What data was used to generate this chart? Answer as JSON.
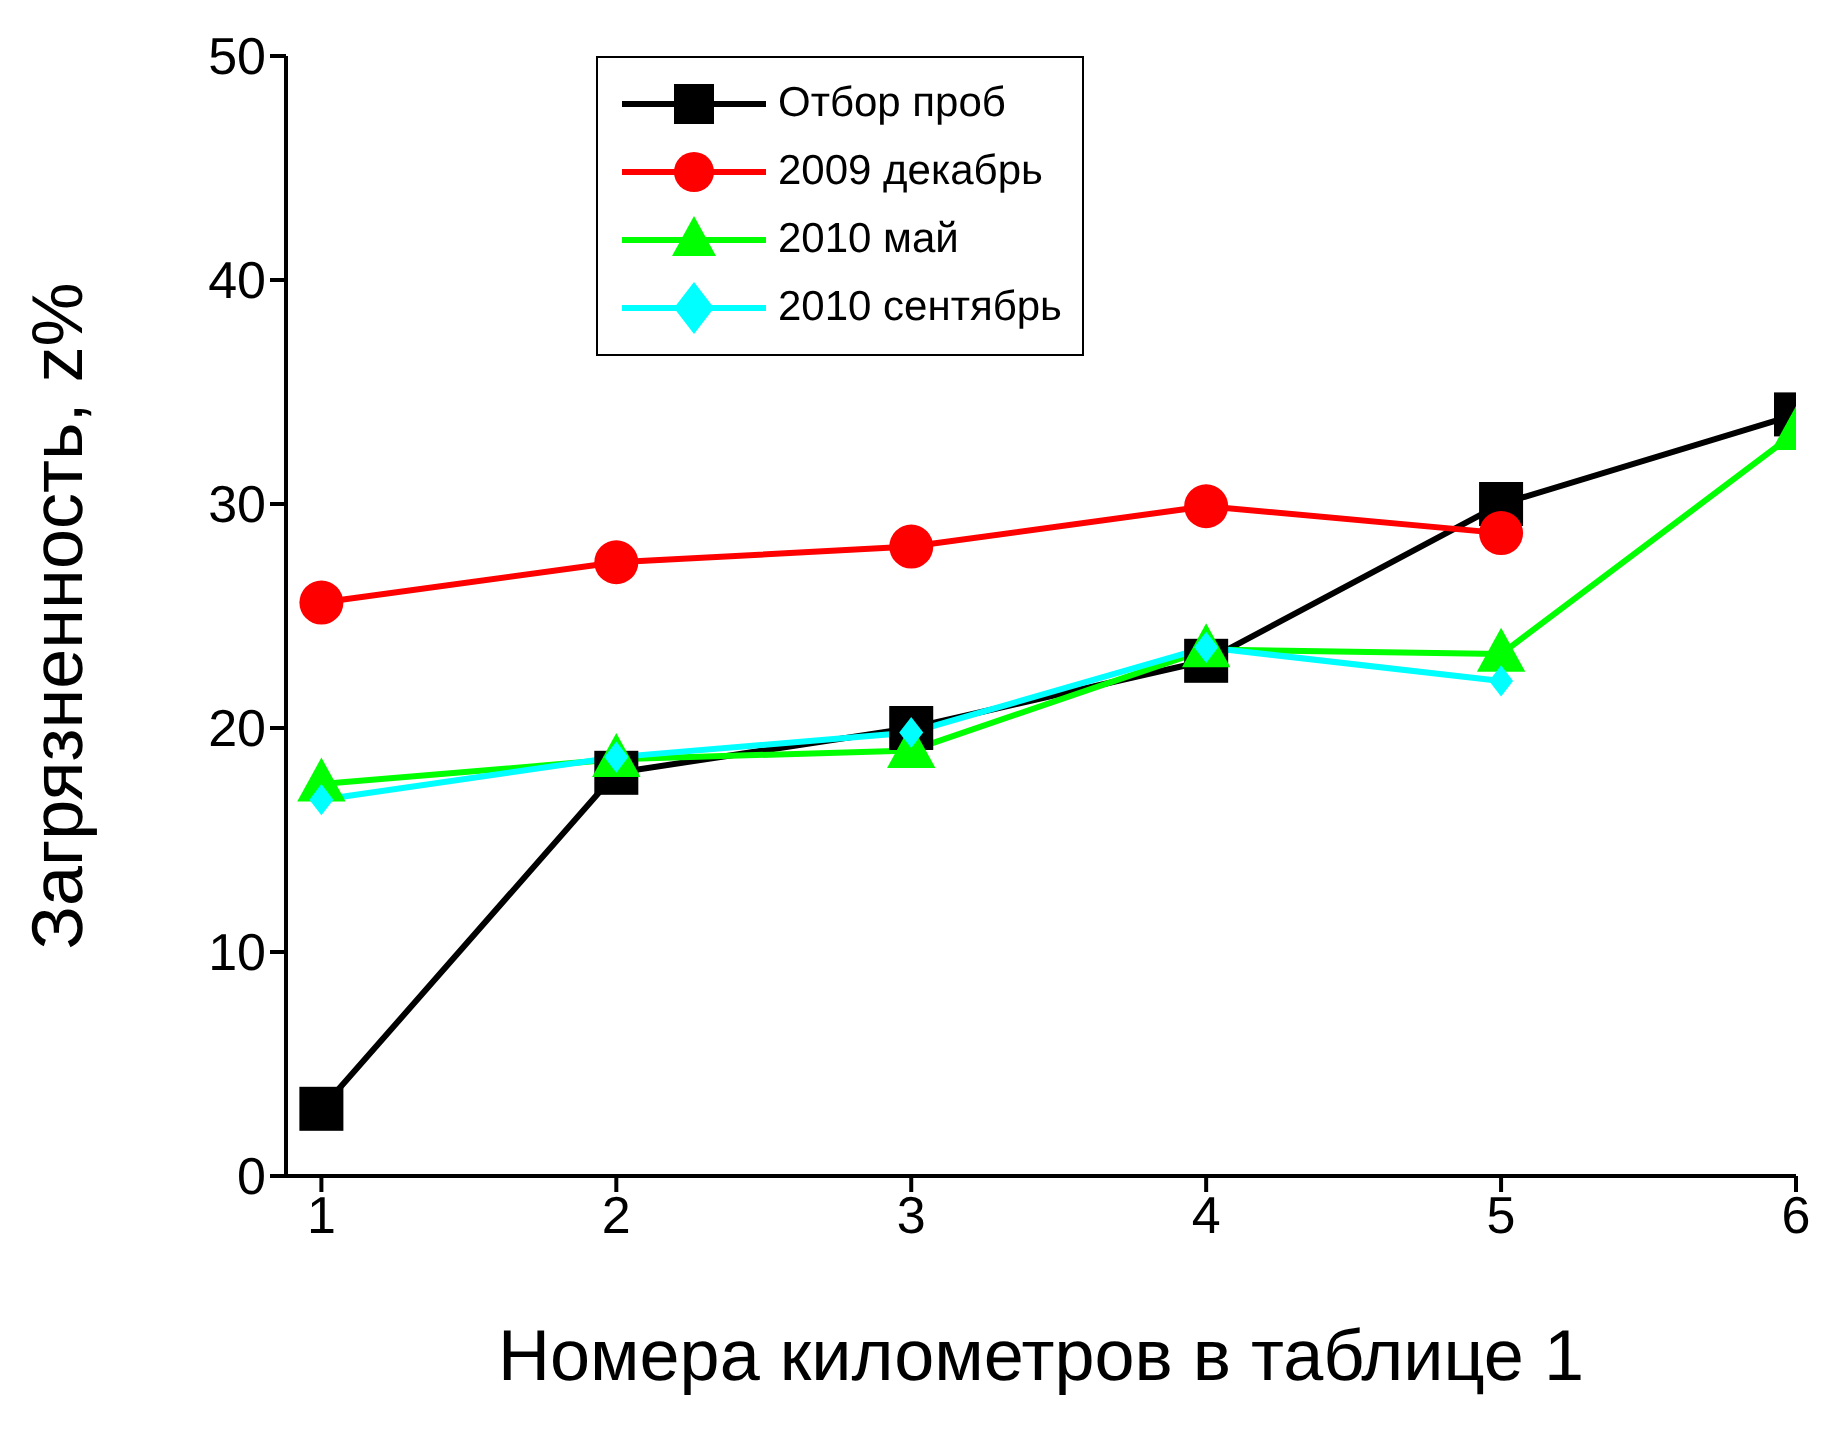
{
  "chart_data": {
    "type": "line",
    "xlabel": "Номера километров в таблице 1",
    "ylabel": "Загрязненность, z%",
    "x": [
      1,
      2,
      3,
      4,
      5,
      6
    ],
    "series": [
      {
        "name": "Отбор проб",
        "color": "#000000",
        "marker": "square",
        "values": [
          3,
          18,
          20,
          23,
          30,
          34
        ]
      },
      {
        "name": "2009 декабрь",
        "color": "#ff0000",
        "marker": "circle",
        "values": [
          25.6,
          27.4,
          28.1,
          29.9,
          28.7,
          null
        ]
      },
      {
        "name": "2010 май",
        "color": "#00ff00",
        "marker": "triangle",
        "values": [
          17.5,
          18.6,
          19,
          23.5,
          23.3,
          33.2
        ]
      },
      {
        "name": "2010 сентябрь",
        "color": "#00ffff",
        "marker": "diamond",
        "values": [
          16.8,
          18.7,
          19.8,
          23.6,
          22.1,
          null
        ]
      }
    ],
    "xlim": [
      0.88,
      6
    ],
    "xticks": [
      1,
      2,
      3,
      4,
      5,
      6
    ],
    "ylim": [
      0,
      50
    ],
    "yticks": [
      0,
      10,
      20,
      30,
      40,
      50
    ],
    "grid": false,
    "legend": "top",
    "line_style": "solid"
  }
}
